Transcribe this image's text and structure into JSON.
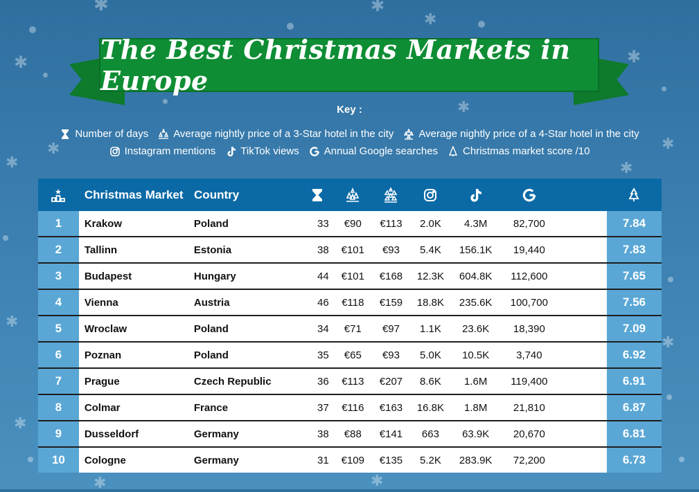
{
  "title": "The Best Christmas Markets in Europe",
  "key": {
    "title": "Key :",
    "items": [
      {
        "icon": "hourglass-icon",
        "label": "Number of days"
      },
      {
        "icon": "three-star-icon",
        "label": "Average nightly price of a 3-Star hotel in the city"
      },
      {
        "icon": "four-star-icon",
        "label": "Average nightly price of a 4-Star hotel in the city"
      },
      {
        "icon": "instagram-icon",
        "label": "Instagram mentions"
      },
      {
        "icon": "tiktok-icon",
        "label": "TikTok views"
      },
      {
        "icon": "google-icon",
        "label": "Annual Google searches"
      },
      {
        "icon": "tree-icon",
        "label": "Christmas market score /10"
      }
    ]
  },
  "table": {
    "headers": {
      "rank_icon": "podium-icon",
      "market": "Christmas Market",
      "country": "Country",
      "days_icon": "hourglass-icon",
      "p3_icon": "three-star-icon",
      "p4_icon": "four-star-icon",
      "ig_icon": "instagram-icon",
      "tt_icon": "tiktok-icon",
      "g_icon": "google-icon",
      "score_icon": "tree-icon"
    },
    "rows": [
      {
        "rank": "1",
        "market": "Krakow",
        "country": "Poland",
        "days": "33",
        "p3": "€90",
        "p4": "€113",
        "ig": "2.0K",
        "tt": "4.3M",
        "g": "82,700",
        "score": "7.84"
      },
      {
        "rank": "2",
        "market": "Tallinn",
        "country": "Estonia",
        "days": "38",
        "p3": "€101",
        "p4": "€93",
        "ig": "5.4K",
        "tt": "156.1K",
        "g": "19,440",
        "score": "7.83"
      },
      {
        "rank": "3",
        "market": "Budapest",
        "country": "Hungary",
        "days": "44",
        "p3": "€101",
        "p4": "€168",
        "ig": "12.3K",
        "tt": "604.8K",
        "g": "112,600",
        "score": "7.65"
      },
      {
        "rank": "4",
        "market": "Vienna",
        "country": "Austria",
        "days": "46",
        "p3": "€118",
        "p4": "€159",
        "ig": "18.8K",
        "tt": "235.6K",
        "g": "100,700",
        "score": "7.56"
      },
      {
        "rank": "5",
        "market": "Wroclaw",
        "country": "Poland",
        "days": "34",
        "p3": "€71",
        "p4": "€97",
        "ig": "1.1K",
        "tt": "23.6K",
        "g": "18,390",
        "score": "7.09"
      },
      {
        "rank": "6",
        "market": "Poznan",
        "country": "Poland",
        "days": "35",
        "p3": "€65",
        "p4": "€93",
        "ig": "5.0K",
        "tt": "10.5K",
        "g": "3,740",
        "score": "6.92"
      },
      {
        "rank": "7",
        "market": "Prague",
        "country": "Czech Republic",
        "days": "36",
        "p3": "€113",
        "p4": "€207",
        "ig": "8.6K",
        "tt": "1.6M",
        "g": "119,400",
        "score": "6.91"
      },
      {
        "rank": "8",
        "market": "Colmar",
        "country": "France",
        "days": "37",
        "p3": "€116",
        "p4": "€163",
        "ig": "16.8K",
        "tt": "1.8M",
        "g": "21,810",
        "score": "6.87"
      },
      {
        "rank": "9",
        "market": "Dusseldorf",
        "country": "Germany",
        "days": "38",
        "p3": "€88",
        "p4": "€141",
        "ig": "663",
        "tt": "63.9K",
        "g": "20,670",
        "score": "6.81"
      },
      {
        "rank": "10",
        "market": "Cologne",
        "country": "Germany",
        "days": "31",
        "p3": "€109",
        "p4": "€135",
        "ig": "5.2K",
        "tt": "283.9K",
        "g": "72,200",
        "score": "6.73"
      }
    ]
  },
  "colors": {
    "background": "#3b7fb0",
    "banner": "#0e8d34",
    "header": "#0b6aa6",
    "rank_cell": "#5aa7d6"
  }
}
